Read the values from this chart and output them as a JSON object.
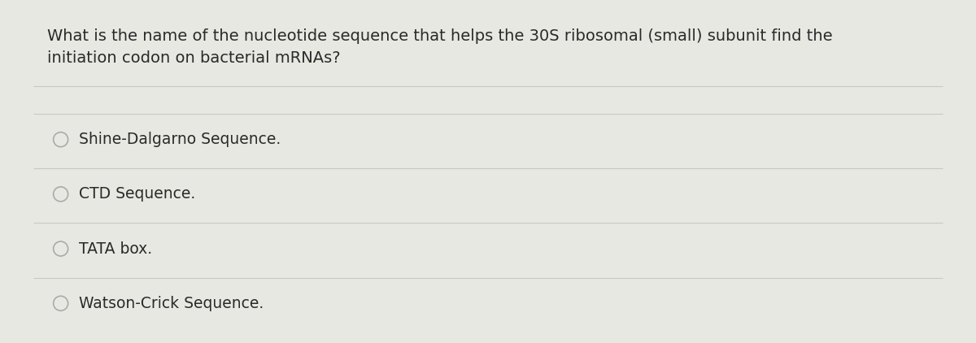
{
  "question_line1": "What is the name of the nucleotide sequence that helps the 30S ribosomal (small) subunit find the",
  "question_line2": "initiation codon on bacterial mRNAs?",
  "options": [
    "Shine-Dalgarno Sequence.",
    "CTD Sequence.",
    "TATA box.",
    "Watson-Crick Sequence."
  ],
  "background_color": "#e8e8e3",
  "card_color": "#f5f5f0",
  "text_color": "#2a2a2a",
  "divider_color": "#c8c8c4",
  "circle_edge_color": "#aaaaaa",
  "question_fontsize": 14.0,
  "option_fontsize": 13.5,
  "border_color": "#b0b0a8"
}
